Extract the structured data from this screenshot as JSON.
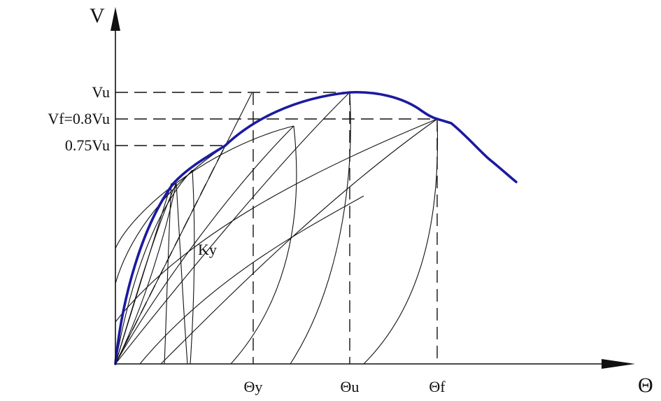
{
  "axes": {
    "y_title": "V",
    "x_title": "Θ"
  },
  "y_ticks": {
    "vu": "Vu",
    "vf": "Vf=0.8Vu",
    "v075": "0.75Vu"
  },
  "x_ticks": {
    "theta_y": "Θy",
    "theta_u": "Θu",
    "theta_f": "Θf"
  },
  "annotations": {
    "ky": "Ky"
  },
  "colors": {
    "envelope": "#1a1aa0",
    "lines": "#111111"
  }
}
